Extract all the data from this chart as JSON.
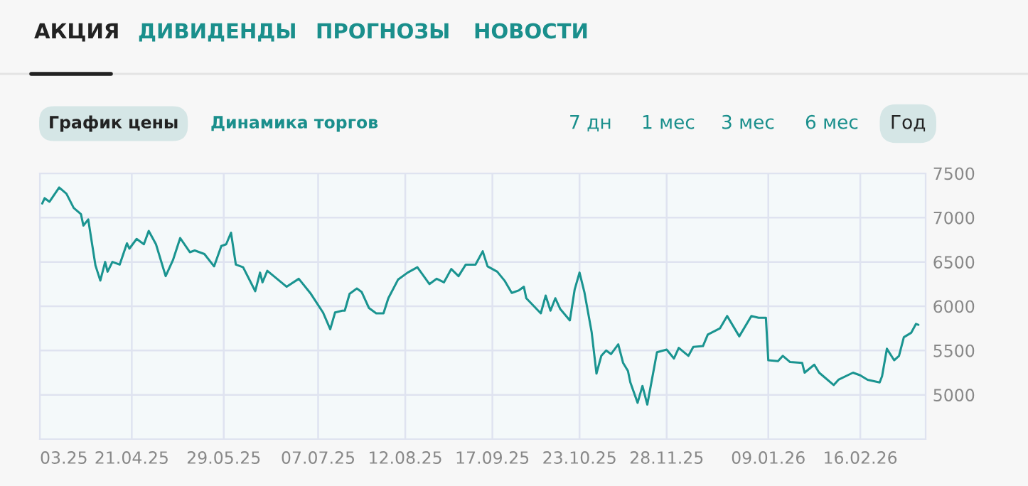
{
  "chart_data": {
    "type": "line",
    "annotations": [
      "АКЦИЯ",
      "ДИВИДЕНДЫ",
      "ПРОГНОЗЫ",
      "НОВОСТИ",
      "График цены",
      "Динамика торгов",
      "7 дн",
      "1 мес",
      "3 мес",
      "6 мес",
      "Год"
    ],
    "x": [
      "2025-03-15",
      "2025-03-16",
      "2025-03-18",
      "2025-03-22",
      "2025-03-25",
      "2025-03-28",
      "2025-03-31",
      "2025-04-01",
      "2025-04-03",
      "2025-04-06",
      "2025-04-08",
      "2025-04-10",
      "2025-04-11",
      "2025-04-13",
      "2025-04-16",
      "2025-04-19",
      "2025-04-20",
      "2025-04-23",
      "2025-04-26",
      "2025-04-28",
      "2025-05-01",
      "2025-05-05",
      "2025-05-08",
      "2025-05-11",
      "2025-05-15",
      "2025-05-17",
      "2025-05-21",
      "2025-05-25",
      "2025-05-28",
      "2025-05-30",
      "2025-06-01",
      "2025-06-03",
      "2025-06-06",
      "2025-06-11",
      "2025-06-13",
      "2025-06-14",
      "2025-06-16",
      "2025-06-24",
      "2025-06-29",
      "2025-07-04",
      "2025-07-09",
      "2025-07-12",
      "2025-07-14",
      "2025-07-17",
      "2025-07-18",
      "2025-07-20",
      "2025-07-23",
      "2025-07-25",
      "2025-07-28",
      "2025-07-31",
      "2025-08-03",
      "2025-08-05",
      "2025-08-09",
      "2025-08-13",
      "2025-08-17",
      "2025-08-22",
      "2025-08-25",
      "2025-08-28",
      "2025-08-31",
      "2025-09-03",
      "2025-09-06",
      "2025-09-10",
      "2025-09-13",
      "2025-09-15",
      "2025-09-19",
      "2025-09-22",
      "2025-09-25",
      "2025-09-28",
      "2025-09-30",
      "2025-10-01",
      "2025-10-07",
      "2025-10-09",
      "2025-10-11",
      "2025-10-13",
      "2025-10-15",
      "2025-10-19",
      "2025-10-21",
      "2025-10-23",
      "2025-10-25",
      "2025-10-28",
      "2025-10-30",
      "2025-11-01",
      "2025-11-03",
      "2025-11-05",
      "2025-11-08",
      "2025-11-10",
      "2025-11-12",
      "2025-11-13",
      "2025-11-16",
      "2025-11-18",
      "2025-11-20",
      "2025-11-24",
      "2025-11-28",
      "2025-12-01",
      "2025-12-03",
      "2025-12-07",
      "2025-12-09",
      "2025-12-13",
      "2025-12-15",
      "2025-12-20",
      "2025-12-23",
      "2025-12-28",
      "2026-01-02",
      "2026-01-05",
      "2026-01-08",
      "2026-01-09",
      "2026-01-13",
      "2026-01-15",
      "2026-01-18",
      "2026-01-23",
      "2026-01-24",
      "2026-01-28",
      "2026-01-30",
      "2026-02-05",
      "2026-02-07",
      "2026-02-13",
      "2026-02-16",
      "2026-02-19",
      "2026-02-24",
      "2026-02-25",
      "2026-02-27",
      "2026-03-02",
      "2026-03-04",
      "2026-03-06",
      "2026-03-09",
      "2026-03-11",
      "2026-03-12"
    ],
    "series": [
      {
        "color": "#1a9490",
        "values": [
          7160,
          7220,
          7180,
          7340,
          7270,
          7110,
          7040,
          6910,
          6980,
          6460,
          6290,
          6500,
          6390,
          6500,
          6470,
          6710,
          6650,
          6760,
          6700,
          6850,
          6700,
          6340,
          6520,
          6770,
          6610,
          6630,
          6590,
          6450,
          6680,
          6700,
          6830,
          6470,
          6440,
          6170,
          6380,
          6270,
          6400,
          6220,
          6310,
          6140,
          5930,
          5740,
          5930,
          5950,
          5950,
          6140,
          6200,
          6160,
          5980,
          5920,
          5920,
          6090,
          6300,
          6380,
          6440,
          6250,
          6310,
          6270,
          6420,
          6340,
          6470,
          6470,
          6620,
          6450,
          6390,
          6290,
          6150,
          6180,
          6220,
          6090,
          5920,
          6120,
          5950,
          6090,
          5970,
          5840,
          6190,
          6380,
          6160,
          5710,
          5240,
          5440,
          5500,
          5460,
          5570,
          5360,
          5270,
          5140,
          4910,
          5100,
          4890,
          5480,
          5510,
          5410,
          5530,
          5440,
          5540,
          5550,
          5680,
          5750,
          5890,
          5660,
          5890,
          5870,
          5870,
          5390,
          5380,
          5440,
          5370,
          5360,
          5250,
          5340,
          5250,
          5110,
          5170,
          5250,
          5220,
          5170,
          5140,
          5210,
          5520,
          5390,
          5440,
          5650,
          5700,
          5800,
          5790
        ]
      }
    ],
    "xlim": [
      "2025-03-14",
      "2026-03-15"
    ],
    "xticks": [
      {
        "value": "2025-03-14",
        "label": "03.25"
      },
      {
        "value": "2025-04-21",
        "label": "21.04.25"
      },
      {
        "value": "2025-05-29",
        "label": "29.05.25"
      },
      {
        "value": "2025-07-07",
        "label": "07.07.25"
      },
      {
        "value": "2025-08-12",
        "label": "12.08.25"
      },
      {
        "value": "2025-09-17",
        "label": "17.09.25"
      },
      {
        "value": "2025-10-23",
        "label": "23.10.25"
      },
      {
        "value": "2025-11-28",
        "label": "28.11.25"
      },
      {
        "value": "2026-01-09",
        "label": "09.01.26"
      },
      {
        "value": "2026-02-16",
        "label": "16.02.26"
      }
    ],
    "ylim": [
      4500,
      7500
    ],
    "yticks": [
      5000,
      5500,
      6000,
      6500,
      7000,
      7500
    ],
    "grid": true,
    "line_style": "solid",
    "marker": "none"
  }
}
